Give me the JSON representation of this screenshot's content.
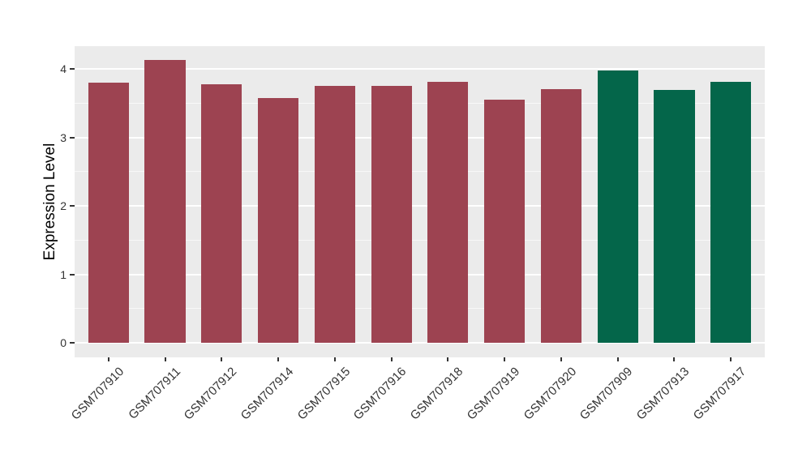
{
  "chart_data": {
    "type": "bar",
    "title": "",
    "xlabel": "",
    "ylabel": "Expression Level",
    "categories": [
      "GSM707910",
      "GSM707911",
      "GSM707912",
      "GSM707914",
      "GSM707915",
      "GSM707916",
      "GSM707918",
      "GSM707919",
      "GSM707920",
      "GSM707909",
      "GSM707913",
      "GSM707917"
    ],
    "values": [
      3.8,
      4.13,
      3.78,
      3.57,
      3.75,
      3.75,
      3.81,
      3.55,
      3.71,
      3.98,
      3.69,
      3.81
    ],
    "bar_colors": [
      "#9D4351",
      "#9D4351",
      "#9D4351",
      "#9D4351",
      "#9D4351",
      "#9D4351",
      "#9D4351",
      "#9D4351",
      "#9D4351",
      "#04664A",
      "#04664A",
      "#04664A"
    ],
    "groups": [
      {
        "color": "#9D4351",
        "categories": [
          "GSM707910",
          "GSM707911",
          "GSM707912",
          "GSM707914",
          "GSM707915",
          "GSM707916",
          "GSM707918",
          "GSM707919",
          "GSM707920"
        ]
      },
      {
        "color": "#04664A",
        "categories": [
          "GSM707909",
          "GSM707913",
          "GSM707917"
        ]
      }
    ],
    "yticks": [
      0,
      1,
      2,
      3,
      4
    ],
    "yticks_minor": [
      0.5,
      1.5,
      2.5,
      3.5
    ],
    "ylim": [
      -0.21,
      4.34
    ],
    "x_tick_rotation_deg": 45,
    "legend": "none",
    "grid": "major+minor",
    "colors": {
      "panel_background": "#EBEBEB",
      "grid_major": "#FFFFFF",
      "grid_minor": "#FFFFFF",
      "axis_text": "#333333",
      "axis_title": "#000000",
      "page_background": "#FFFFFF"
    }
  }
}
